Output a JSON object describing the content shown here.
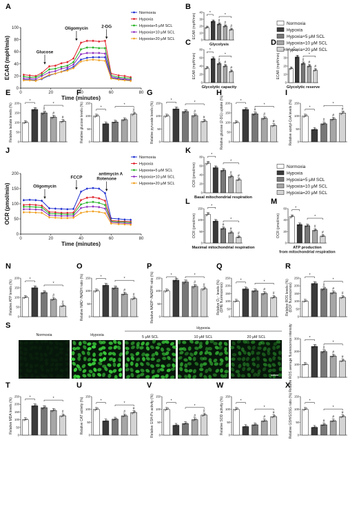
{
  "colors": {
    "normoxia": "#1f2fd0",
    "hypoxia": "#e0202a",
    "scl5": "#22b022",
    "scl10": "#9030c0",
    "scl20": "#f0a020",
    "bar_normoxia": "#ffffff",
    "bar_hypoxia": "#3a3a3a",
    "bar_scl5": "#777777",
    "bar_scl10": "#a6a6a6",
    "bar_scl20": "#d4d4d4",
    "micro_bg": "#07160a",
    "micro_cell": "#3ed83e"
  },
  "legend_groups": [
    "Normoxia",
    "Hypoxia",
    "Hypoxia+5 μM SCL",
    "Hypoxia+10 μM SCL",
    "Hypoxia+20 μM SCL"
  ],
  "legend_groups_k": [
    "Normoxia",
    "Hypoxia",
    "Hypoxia+5 μM SCL",
    "Hypoxia+10 μM SCL",
    "Hypoxia=20 μM SCL"
  ],
  "panels": {
    "A": "A",
    "B": "B",
    "C": "C",
    "D": "D",
    "E": "E",
    "F": "F",
    "G": "G",
    "H": "H",
    "I": "I",
    "J": "J",
    "K": "K",
    "L": "L",
    "M": "M",
    "N": "N",
    "O": "O",
    "P": "P",
    "Q": "Q",
    "R": "R",
    "S": "S",
    "T": "T",
    "U": "U",
    "V": "V",
    "W": "W",
    "X": "X"
  },
  "chart_data": [
    {
      "id": "A",
      "type": "line",
      "xlabel": "Time (minutes)",
      "ylabel": "ECAR (mpH/min)",
      "xlim": [
        0,
        80
      ],
      "ylim": [
        0,
        100
      ],
      "xticks": [
        0,
        20,
        40,
        60,
        80
      ],
      "yticks": [
        0,
        20,
        40,
        60,
        80,
        100
      ],
      "annotations": [
        {
          "text": "Glucose",
          "x": 16
        },
        {
          "text": "Oligomycin",
          "x": 37
        },
        {
          "text": "2-DG",
          "x": 57
        }
      ],
      "x": [
        2,
        6,
        10,
        14,
        19,
        23,
        27,
        31,
        35,
        40,
        44,
        48,
        52,
        56,
        60,
        65,
        69,
        73
      ],
      "series": [
        {
          "name": "Normoxia",
          "values": [
            14,
            14,
            13,
            15,
            21,
            24,
            27,
            31,
            35,
            47,
            50,
            51,
            51,
            51,
            17,
            15,
            14,
            13
          ]
        },
        {
          "name": "Hypoxia",
          "values": [
            22,
            21,
            20,
            25,
            36,
            37,
            41,
            43,
            49,
            75,
            78,
            78,
            77,
            78,
            24,
            21,
            20,
            18
          ]
        },
        {
          "name": "Hypoxia+5 μM SCL",
          "values": [
            19,
            18,
            18,
            22,
            31,
            32,
            35,
            37,
            43,
            64,
            67,
            67,
            66,
            66,
            21,
            18,
            17,
            16
          ]
        },
        {
          "name": "Hypoxia+10 μM SCL",
          "values": [
            16,
            16,
            15,
            20,
            26,
            28,
            32,
            34,
            39,
            56,
            58,
            58,
            58,
            57,
            19,
            16,
            15,
            14
          ]
        },
        {
          "name": "Hypoxia+20 μM SCL",
          "values": [
            13,
            13,
            12,
            16,
            22,
            24,
            27,
            29,
            33,
            44,
            46,
            47,
            46,
            45,
            16,
            14,
            13,
            12
          ]
        }
      ]
    },
    {
      "id": "B",
      "type": "bar",
      "ylabel": "ECAR (mpH/min)",
      "title": "Glycolysis",
      "ylim": [
        0,
        40
      ],
      "yticks": [
        0,
        10,
        20,
        30,
        40
      ],
      "values": [
        18,
        27,
        23,
        20,
        15
      ],
      "sig": [
        "",
        "",
        "#",
        "#",
        "#"
      ],
      "brackets": [
        [
          0,
          1
        ],
        [
          2,
          4
        ]
      ]
    },
    {
      "id": "C",
      "type": "bar",
      "ylabel": "ECAR (mpH/min)",
      "title": "Glycolytic capacity",
      "ylim": [
        0,
        80
      ],
      "yticks": [
        0,
        20,
        40,
        60,
        80
      ],
      "values": [
        35,
        58,
        46,
        40,
        27
      ],
      "sig": [
        "",
        "",
        "#",
        "#",
        "#"
      ],
      "brackets": [
        [
          0,
          1
        ],
        [
          2,
          4
        ]
      ]
    },
    {
      "id": "D",
      "type": "bar",
      "ylabel": "ECAR (mpH/min)",
      "title": "Glycolytic reserve",
      "ylim": [
        0,
        40
      ],
      "yticks": [
        0,
        10,
        20,
        30,
        40
      ],
      "values": [
        17,
        31,
        23,
        20,
        15
      ],
      "sig": [
        "",
        "",
        "#",
        "#",
        "#"
      ],
      "brackets": [
        [
          0,
          1
        ],
        [
          2,
          4
        ]
      ]
    },
    {
      "id": "E",
      "type": "bar",
      "ylabel": "Relative lactate levels (%)",
      "ylim": [
        0,
        200
      ],
      "yticks": [
        0,
        50,
        100,
        150,
        200
      ],
      "values": [
        100,
        168,
        150,
        128,
        106
      ],
      "sig": [
        "",
        "",
        "#",
        "#",
        "#"
      ],
      "brackets": [
        [
          0,
          1
        ],
        [
          2,
          4
        ]
      ]
    },
    {
      "id": "F",
      "type": "bar",
      "ylabel": "Relative glucose levels (%)",
      "ylim": [
        0,
        150
      ],
      "yticks": [
        0,
        50,
        100,
        150
      ],
      "values": [
        100,
        70,
        77,
        86,
        108
      ],
      "sig": [
        "",
        "",
        "",
        "",
        "#"
      ],
      "brackets": [
        [
          0,
          1
        ],
        [
          2,
          4
        ]
      ]
    },
    {
      "id": "G",
      "type": "bar",
      "ylabel": "Relative pyruvate levels (%)",
      "ylim": [
        0,
        150
      ],
      "yticks": [
        0,
        50,
        100,
        150
      ],
      "values": [
        100,
        128,
        118,
        102,
        80
      ],
      "sig": [
        "",
        "",
        "",
        "#",
        "#"
      ],
      "brackets": [
        [
          0,
          1
        ],
        [
          2,
          4
        ]
      ]
    },
    {
      "id": "H",
      "type": "bar",
      "ylabel": "Relative glucose (2-DG) uptake (%)",
      "ylim": [
        0,
        200
      ],
      "yticks": [
        0,
        50,
        100,
        150,
        200
      ],
      "values": [
        100,
        168,
        145,
        122,
        84
      ],
      "sig": [
        "",
        "",
        "#",
        "#",
        "#"
      ],
      "brackets": [
        [
          0,
          1
        ],
        [
          2,
          4
        ]
      ]
    },
    {
      "id": "I",
      "type": "bar",
      "ylabel": "Relative acetyl-CoA levels (%)",
      "ylim": [
        0,
        150
      ],
      "yticks": [
        0,
        50,
        100,
        150
      ],
      "values": [
        100,
        48,
        70,
        88,
        112
      ],
      "sig": [
        "",
        "",
        "#",
        "#",
        "#"
      ],
      "brackets": [
        [
          0,
          1
        ],
        [
          2,
          4
        ]
      ]
    },
    {
      "id": "J",
      "type": "line",
      "xlabel": "Time (minutes)",
      "ylabel": "OCR (pmol/min)",
      "xlim": [
        0,
        80
      ],
      "ylim": [
        0,
        200
      ],
      "xticks": [
        0,
        20,
        40,
        60,
        80
      ],
      "yticks": [
        0,
        50,
        100,
        150,
        200
      ],
      "annotations": [
        {
          "text": "Oligomycin",
          "x": 16
        },
        {
          "text": "FCCP",
          "x": 37
        },
        {
          "text": "antimycin A\nRotenone",
          "x": 57
        }
      ],
      "x": [
        2,
        6,
        10,
        14,
        19,
        23,
        27,
        31,
        35,
        40,
        44,
        48,
        52,
        56,
        60,
        65,
        69,
        73
      ],
      "series": [
        {
          "name": "Normoxia",
          "values": [
            112,
            113,
            112,
            110,
            85,
            84,
            83,
            82,
            83,
            140,
            150,
            152,
            150,
            135,
            52,
            50,
            48,
            47
          ]
        },
        {
          "name": "Hypoxia",
          "values": [
            96,
            97,
            96,
            94,
            73,
            72,
            70,
            70,
            71,
            112,
            120,
            122,
            118,
            110,
            45,
            43,
            42,
            41
          ]
        },
        {
          "name": "Hypoxia+5 μM SCL",
          "values": [
            90,
            90,
            89,
            88,
            68,
            67,
            66,
            65,
            66,
            98,
            104,
            106,
            103,
            96,
            42,
            40,
            39,
            38
          ]
        },
        {
          "name": "Hypoxia+10 μM SCL",
          "values": [
            82,
            82,
            81,
            80,
            62,
            61,
            60,
            60,
            60,
            86,
            90,
            91,
            89,
            84,
            39,
            37,
            36,
            35
          ]
        },
        {
          "name": "Hypoxia+20 μM SCL",
          "values": [
            72,
            72,
            71,
            70,
            55,
            54,
            53,
            53,
            54,
            70,
            74,
            75,
            73,
            69,
            35,
            33,
            32,
            31
          ]
        }
      ]
    },
    {
      "id": "K",
      "type": "bar",
      "ylabel": "OCR (pmol/min)",
      "title": "Basal mitochondrial respiration",
      "ylim": [
        0,
        80
      ],
      "yticks": [
        0,
        20,
        40,
        60,
        80
      ],
      "values": [
        66,
        56,
        50,
        36,
        29
      ],
      "sig": [
        "",
        "",
        "",
        "#",
        "#"
      ],
      "brackets": [
        [
          0,
          1
        ],
        [
          2,
          4
        ]
      ]
    },
    {
      "id": "L",
      "type": "bar",
      "ylabel": "OCR (pmol/min)",
      "title": "Maximal mitochondrial respiration",
      "ylim": [
        0,
        150
      ],
      "yticks": [
        0,
        50,
        100,
        150
      ],
      "values": [
        125,
        95,
        63,
        45,
        25
      ],
      "sig": [
        "",
        "",
        "#",
        "#",
        "#"
      ],
      "brackets": [
        [
          0,
          1
        ],
        [
          2,
          4
        ]
      ]
    },
    {
      "id": "M",
      "type": "bar",
      "ylabel": "OCR (pmol/min)",
      "title": "ATP production\nfrom mitochondrial respiration",
      "ylim": [
        0,
        60
      ],
      "yticks": [
        0,
        20,
        40,
        60
      ],
      "values": [
        46,
        32,
        30,
        22,
        12
      ],
      "sig": [
        "",
        "",
        "",
        "#",
        "#"
      ],
      "brackets": [
        [
          0,
          1
        ],
        [
          2,
          4
        ]
      ]
    },
    {
      "id": "N",
      "type": "bar",
      "ylabel": "Relative ATP levels (%)",
      "ylim": [
        0,
        200
      ],
      "yticks": [
        0,
        50,
        100,
        150,
        200
      ],
      "values": [
        100,
        150,
        125,
        90,
        55
      ],
      "sig": [
        "",
        "",
        "",
        "#",
        "#"
      ],
      "brackets": [
        [
          0,
          1
        ],
        [
          2,
          4
        ]
      ]
    },
    {
      "id": "O",
      "type": "bar",
      "ylabel": "Relative NAD⁺/NADH ratio (%)",
      "ylim": [
        0,
        150
      ],
      "yticks": [
        0,
        50,
        100,
        150
      ],
      "values": [
        100,
        122,
        112,
        88,
        70
      ],
      "sig": [
        "",
        "",
        "",
        "#",
        "#"
      ],
      "brackets": [
        [
          0,
          1
        ],
        [
          2,
          4
        ]
      ]
    },
    {
      "id": "P",
      "type": "bar",
      "ylabel": "Relative NADP⁺/NADPH ratio (%)",
      "ylim": [
        0,
        150
      ],
      "yticks": [
        0,
        50,
        100,
        150
      ],
      "values": [
        100,
        142,
        135,
        118,
        108
      ],
      "sig": [
        "",
        "",
        "",
        "#",
        "#"
      ],
      "brackets": [
        [
          0,
          1
        ],
        [
          2,
          4
        ]
      ]
    },
    {
      "id": "Q",
      "type": "bar",
      "ylabel": "Relative O₂⁻ levels (%) (DHE fluorescence)",
      "ylim": [
        0,
        250
      ],
      "yticks": [
        0,
        50,
        100,
        150,
        200,
        250
      ],
      "values": [
        100,
        180,
        168,
        150,
        125
      ],
      "sig": [
        "",
        "",
        "",
        "#",
        "#"
      ],
      "brackets": [
        [
          0,
          1
        ],
        [
          2,
          4
        ]
      ]
    },
    {
      "id": "R",
      "type": "bar",
      "ylabel": "Relative ROS levels (%) (DCF fluorescence)",
      "ylim": [
        0,
        250
      ],
      "yticks": [
        0,
        50,
        100,
        150,
        200,
        250
      ],
      "values": [
        100,
        215,
        180,
        155,
        125
      ],
      "sig": [
        "",
        "",
        "#",
        "#",
        "#"
      ],
      "brackets": [
        [
          0,
          1
        ],
        [
          2,
          4
        ]
      ]
    },
    {
      "id": "S",
      "type": "bar",
      "ylabel": "Relative ROS average fluorescence intensity",
      "ylim": [
        0,
        300
      ],
      "yticks": [
        0,
        100,
        200,
        300
      ],
      "values": [
        100,
        240,
        200,
        165,
        128
      ],
      "sig": [
        "",
        "",
        "#",
        "#",
        "#"
      ],
      "brackets": [
        [
          0,
          1
        ],
        [
          2,
          4
        ]
      ]
    },
    {
      "id": "T",
      "type": "bar",
      "ylabel": "Relative MDA levels (%)",
      "ylim": [
        0,
        250
      ],
      "yticks": [
        0,
        50,
        100,
        150,
        200,
        250
      ],
      "values": [
        100,
        190,
        178,
        160,
        125
      ],
      "sig": [
        "",
        "",
        "",
        "",
        "#"
      ],
      "brackets": [
        [
          0,
          1
        ],
        [
          2,
          4
        ]
      ]
    },
    {
      "id": "U",
      "type": "bar",
      "ylabel": "Relative CAT activity (%)",
      "ylim": [
        0,
        150
      ],
      "yticks": [
        0,
        50,
        100,
        150
      ],
      "values": [
        100,
        55,
        62,
        75,
        88
      ],
      "sig": [
        "",
        "",
        "",
        "#",
        "#"
      ],
      "brackets": [
        [
          0,
          1
        ],
        [
          2,
          4
        ]
      ]
    },
    {
      "id": "V",
      "type": "bar",
      "ylabel": "Relative GSH-Px activity (%)",
      "ylim": [
        0,
        150
      ],
      "yticks": [
        0,
        50,
        100,
        150
      ],
      "values": [
        100,
        38,
        45,
        60,
        78
      ],
      "sig": [
        "",
        "",
        "",
        "#",
        "#"
      ],
      "brackets": [
        [
          0,
          1
        ],
        [
          2,
          4
        ]
      ]
    },
    {
      "id": "W",
      "type": "bar",
      "ylabel": "Relative SOD activity (%)",
      "ylim": [
        0,
        150
      ],
      "yticks": [
        0,
        50,
        100,
        150
      ],
      "values": [
        100,
        33,
        40,
        55,
        72
      ],
      "sig": [
        "",
        "",
        "",
        "#",
        "#"
      ],
      "brackets": [
        [
          0,
          1
        ],
        [
          2,
          4
        ]
      ]
    },
    {
      "id": "X",
      "type": "bar",
      "ylabel": "Relative GSH/GSSG ratio (%)",
      "ylim": [
        0,
        150
      ],
      "yticks": [
        0,
        50,
        100,
        150
      ],
      "values": [
        100,
        30,
        40,
        55,
        72
      ],
      "sig": [
        "",
        "",
        "#",
        "#",
        "#"
      ],
      "brackets": [
        [
          0,
          1
        ],
        [
          2,
          4
        ]
      ]
    }
  ],
  "micrographs": {
    "header": "Hypoxia",
    "labels": [
      "Normoxia",
      "Hypoxia",
      "5 μM SCL",
      "10 μM SCL",
      "20 μM SCL"
    ],
    "cell_density": [
      0.06,
      1.0,
      0.85,
      0.7,
      0.45
    ]
  }
}
